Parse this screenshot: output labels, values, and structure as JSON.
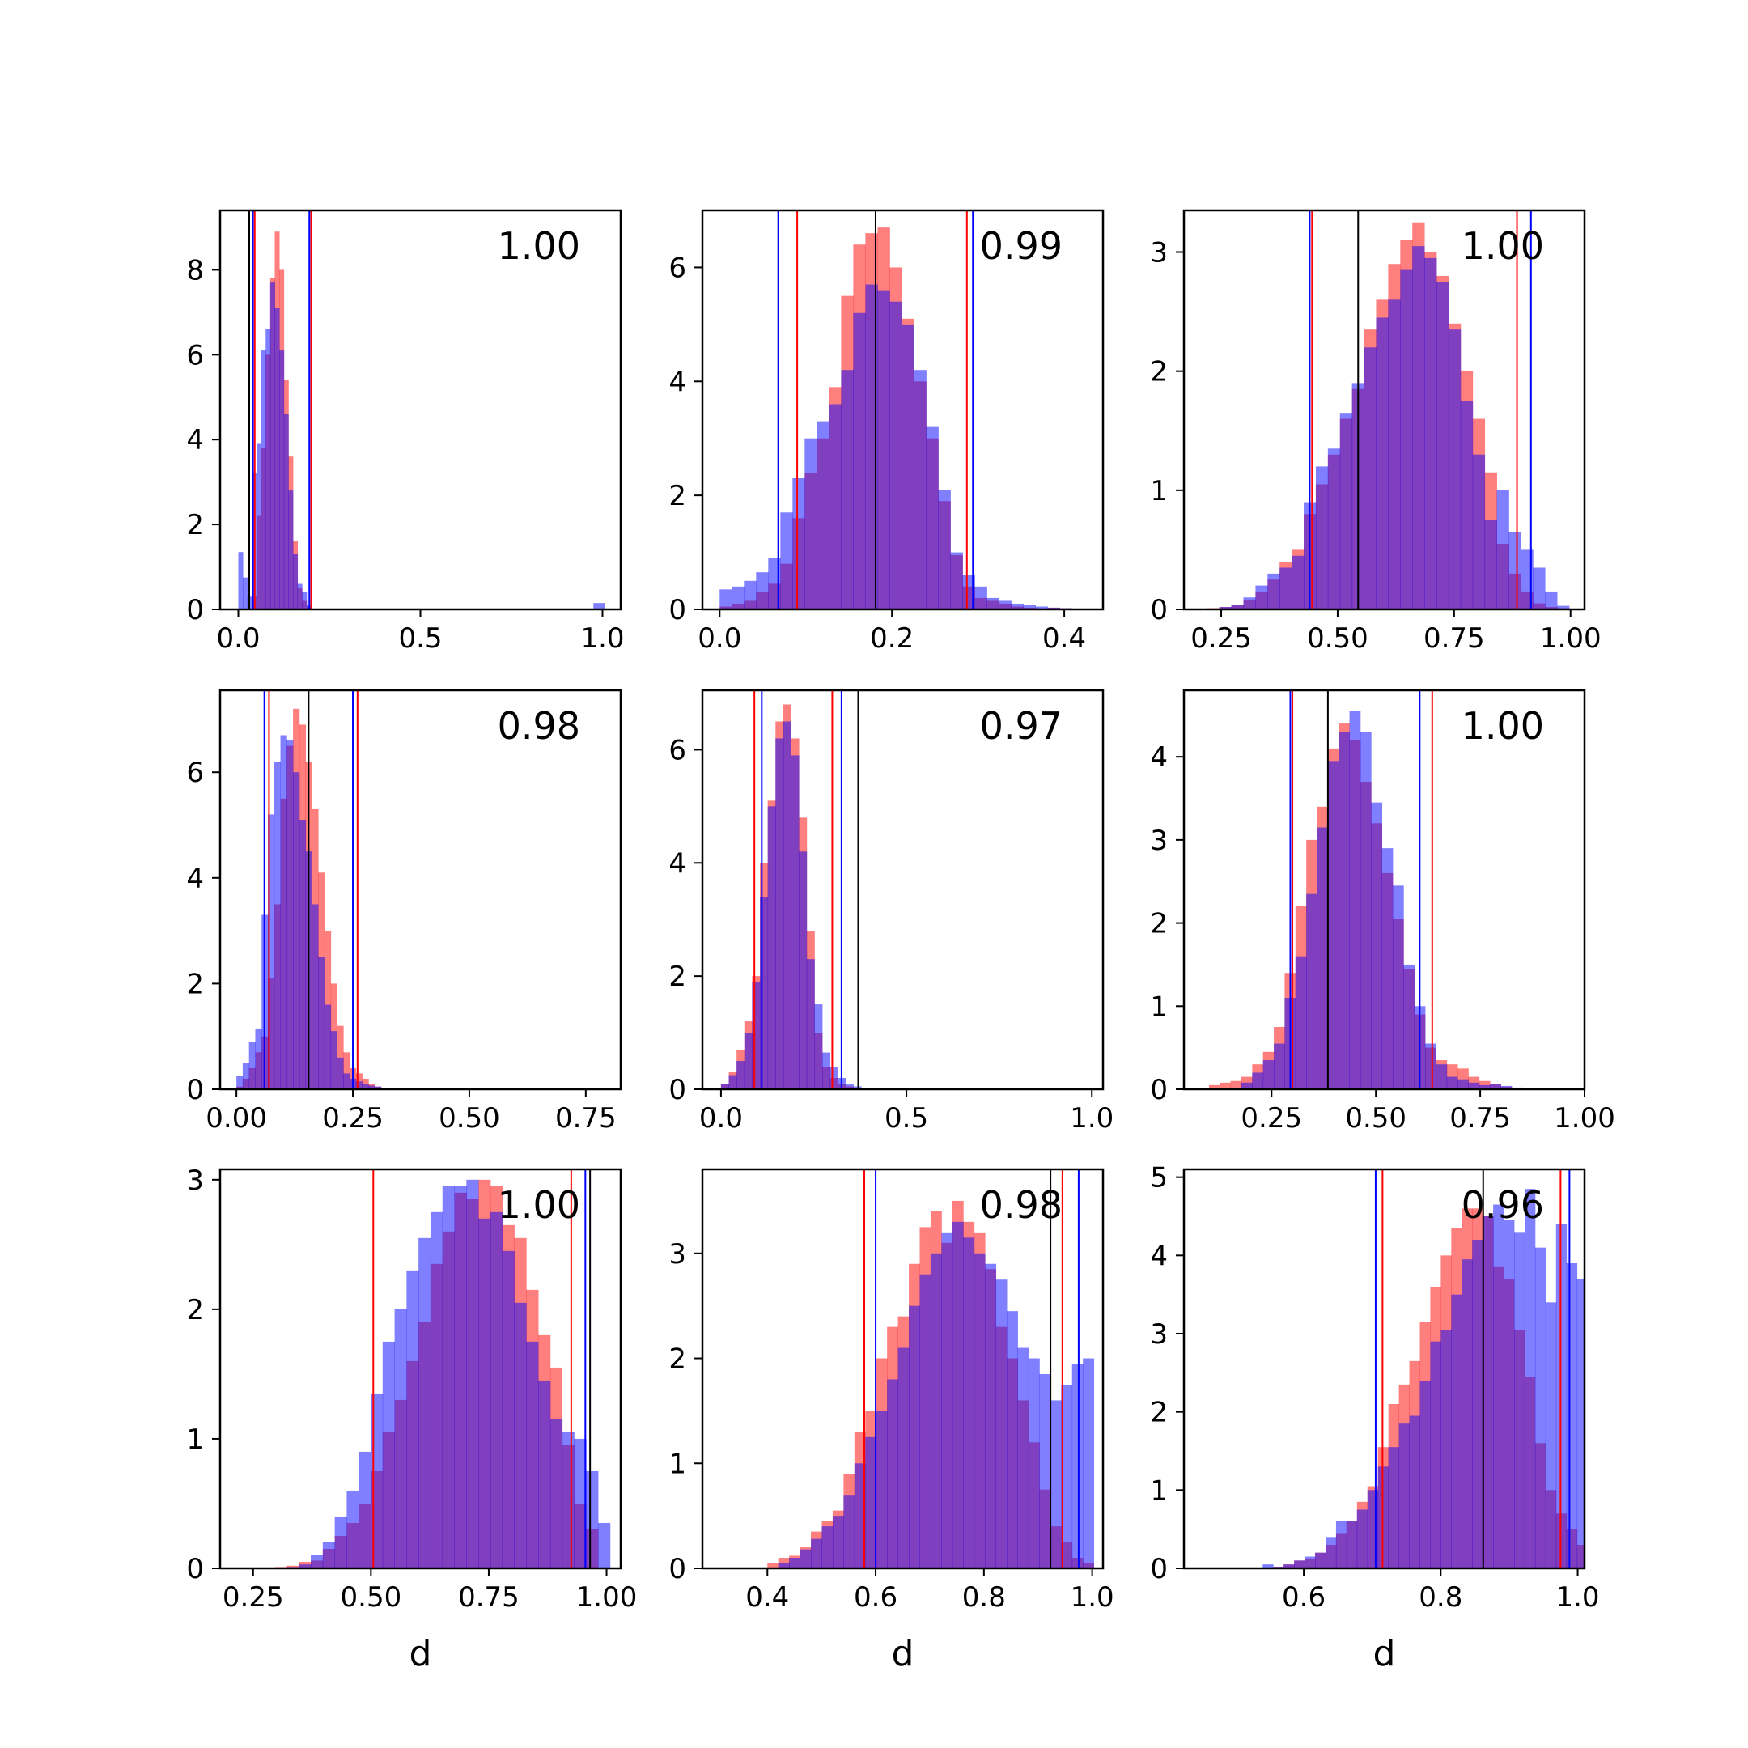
{
  "chart_data": [
    {
      "type": "histogram",
      "annotation": "1.00",
      "xlabel": "",
      "xlim": [
        -0.05,
        1.05
      ],
      "ylim": [
        0,
        9.4
      ],
      "xticks": [
        0.0,
        0.5,
        1.0
      ],
      "xtick_labels": [
        "0.0",
        "0.5",
        "1.0"
      ],
      "yticks": [
        0,
        2,
        4,
        6,
        8
      ],
      "ytick_labels": [
        "0",
        "2",
        "4",
        "6",
        "8"
      ],
      "hist_red": {
        "start": 0.0,
        "bin_width": 0.0125,
        "values": [
          0,
          0,
          0,
          0.3,
          2.2,
          3.8,
          6.0,
          7.8,
          8.9,
          8.0,
          5.4,
          3.6,
          1.6,
          0.5,
          0.2,
          0.05
        ]
      },
      "hist_blue": {
        "start": 0.0,
        "bin_width": 0.0125,
        "values": [
          1.35,
          0.75,
          0.3,
          3.2,
          3.9,
          6.1,
          6.6,
          7.7,
          7.1,
          6.1,
          4.6,
          2.8,
          1.3,
          0.6,
          0.4,
          0.1
        ]
      },
      "blue_tail": {
        "start": 0.975,
        "bin_width": 0.03,
        "values": [
          0.15
        ]
      },
      "vlines": [
        {
          "x": 0.03,
          "color": "#000000"
        },
        {
          "x": 0.04,
          "color": "#0000ff"
        },
        {
          "x": 0.045,
          "color": "#ff0000"
        },
        {
          "x": 0.195,
          "color": "#0000ff"
        },
        {
          "x": 0.2,
          "color": "#ff0000"
        }
      ]
    },
    {
      "type": "histogram",
      "annotation": "0.99",
      "xlabel": "",
      "xlim": [
        -0.02,
        0.445
      ],
      "ylim": [
        0,
        7.0
      ],
      "xticks": [
        0.0,
        0.2,
        0.4
      ],
      "xtick_labels": [
        "0.0",
        "0.2",
        "0.4"
      ],
      "yticks": [
        0,
        2,
        4,
        6
      ],
      "ytick_labels": [
        "0",
        "2",
        "4",
        "6"
      ],
      "hist_red": {
        "start": 0.0,
        "bin_width": 0.0141,
        "values": [
          0.05,
          0.1,
          0.15,
          0.3,
          0.45,
          0.8,
          1.6,
          2.4,
          3.0,
          3.9,
          5.5,
          6.4,
          6.6,
          6.7,
          6.0,
          5.1,
          4.0,
          3.0,
          1.9,
          0.95,
          0.4,
          0.2,
          0.15,
          0.1,
          0.05,
          0.03,
          0.02,
          0.03,
          0.02,
          0.01
        ]
      },
      "hist_blue": {
        "start": 0.0,
        "bin_width": 0.0141,
        "values": [
          0.35,
          0.4,
          0.5,
          0.65,
          0.9,
          1.7,
          2.3,
          3.0,
          3.3,
          3.6,
          4.2,
          5.2,
          5.7,
          5.6,
          5.4,
          5.0,
          4.2,
          3.2,
          2.1,
          1.0,
          0.6,
          0.4,
          0.2,
          0.15,
          0.1,
          0.08,
          0.05,
          0.03,
          0.02,
          0.01
        ]
      },
      "vlines": [
        {
          "x": 0.068,
          "color": "#0000ff"
        },
        {
          "x": 0.09,
          "color": "#ff0000"
        },
        {
          "x": 0.181,
          "color": "#000000"
        },
        {
          "x": 0.287,
          "color": "#ff0000"
        },
        {
          "x": 0.294,
          "color": "#0000ff"
        }
      ]
    },
    {
      "type": "histogram",
      "annotation": "1.00",
      "xlabel": "",
      "xlim": [
        0.17,
        1.03
      ],
      "ylim": [
        0,
        3.35
      ],
      "xticks": [
        0.25,
        0.5,
        0.75,
        1.0
      ],
      "xtick_labels": [
        "0.25",
        "0.50",
        "0.75",
        "1.00"
      ],
      "yticks": [
        0,
        1,
        2,
        3
      ],
      "ytick_labels": [
        "0",
        "1",
        "2",
        "3"
      ],
      "hist_red": {
        "start": 0.22,
        "bin_width": 0.0259,
        "values": [
          0.01,
          0.02,
          0.04,
          0.08,
          0.15,
          0.25,
          0.4,
          0.5,
          0.8,
          1.05,
          1.3,
          1.6,
          1.85,
          2.35,
          2.6,
          2.9,
          3.1,
          3.25,
          3.0,
          2.8,
          2.4,
          2.0,
          1.6,
          1.15,
          0.55,
          0.3,
          0.15,
          0.05,
          0.02,
          0.01
        ]
      },
      "hist_blue": {
        "start": 0.22,
        "bin_width": 0.0259,
        "values": [
          0.0,
          0.02,
          0.04,
          0.1,
          0.2,
          0.3,
          0.35,
          0.45,
          0.9,
          1.2,
          1.35,
          1.65,
          1.9,
          2.2,
          2.45,
          2.6,
          2.85,
          3.05,
          2.95,
          2.75,
          2.35,
          1.75,
          1.3,
          0.75,
          1.0,
          0.65,
          0.5,
          0.35,
          0.15,
          0.03
        ]
      },
      "vlines": [
        {
          "x": 0.44,
          "color": "#0000ff"
        },
        {
          "x": 0.445,
          "color": "#ff0000"
        },
        {
          "x": 0.544,
          "color": "#000000"
        },
        {
          "x": 0.885,
          "color": "#ff0000"
        },
        {
          "x": 0.915,
          "color": "#0000ff"
        }
      ]
    },
    {
      "type": "histogram",
      "annotation": "0.98",
      "xlabel": "",
      "xlim": [
        -0.035,
        0.825
      ],
      "ylim": [
        0,
        7.55
      ],
      "xticks": [
        0.0,
        0.25,
        0.5,
        0.75
      ],
      "xtick_labels": [
        "0.00",
        "0.25",
        "0.50",
        "0.75"
      ],
      "yticks": [
        0,
        2,
        4,
        6
      ],
      "ytick_labels": [
        "0",
        "2",
        "4",
        "6"
      ],
      "hist_red": {
        "start": 0.0,
        "bin_width": 0.0135,
        "values": [
          0.05,
          0.2,
          0.4,
          0.7,
          1.0,
          2.1,
          3.5,
          5.5,
          6.5,
          7.2,
          6.9,
          6.2,
          5.3,
          4.1,
          3.0,
          2.0,
          1.2,
          0.7,
          0.4,
          0.3,
          0.2,
          0.1,
          0.05,
          0.03,
          0.02,
          0.01,
          0.01,
          0.01
        ]
      },
      "hist_blue": {
        "start": 0.0,
        "bin_width": 0.0135,
        "values": [
          0.25,
          0.5,
          0.9,
          1.15,
          3.3,
          5.2,
          6.2,
          6.7,
          6.6,
          6.0,
          5.1,
          4.5,
          3.5,
          2.5,
          1.6,
          1.1,
          0.6,
          0.3,
          0.2,
          0.15,
          0.1,
          0.07,
          0.05,
          0.03,
          0.02,
          0.01,
          0.01,
          0.0
        ]
      },
      "vlines": [
        {
          "x": 0.06,
          "color": "#0000ff"
        },
        {
          "x": 0.07,
          "color": "#ff0000"
        },
        {
          "x": 0.155,
          "color": "#000000"
        },
        {
          "x": 0.25,
          "color": "#0000ff"
        },
        {
          "x": 0.26,
          "color": "#ff0000"
        }
      ]
    },
    {
      "type": "histogram",
      "annotation": "0.97",
      "xlabel": "",
      "xlim": [
        -0.05,
        1.03
      ],
      "ylim": [
        0,
        7.05
      ],
      "xticks": [
        0.0,
        0.5,
        1.0
      ],
      "xtick_labels": [
        "0.0",
        "0.5",
        "1.0"
      ],
      "yticks": [
        0,
        2,
        4,
        6
      ],
      "ytick_labels": [
        "0",
        "2",
        "4",
        "6"
      ],
      "hist_red": {
        "start": 0.0,
        "bin_width": 0.021,
        "values": [
          0.1,
          0.3,
          0.7,
          1.2,
          2.0,
          4.0,
          5.1,
          6.5,
          6.8,
          6.2,
          4.8,
          2.8,
          1.0,
          0.4,
          0.2,
          0.1,
          0.05,
          0.02,
          0.01,
          0.01
        ]
      },
      "hist_blue": {
        "start": 0.0,
        "bin_width": 0.021,
        "values": [
          0.1,
          0.25,
          0.5,
          1.0,
          1.9,
          3.4,
          5.0,
          6.2,
          6.5,
          5.9,
          4.2,
          2.3,
          1.5,
          0.65,
          0.4,
          0.2,
          0.1,
          0.05,
          0.02,
          0.01
        ]
      },
      "vlines": [
        {
          "x": 0.09,
          "color": "#ff0000"
        },
        {
          "x": 0.11,
          "color": "#0000ff"
        },
        {
          "x": 0.3,
          "color": "#ff0000"
        },
        {
          "x": 0.325,
          "color": "#0000ff"
        },
        {
          "x": 0.37,
          "color": "#000000"
        }
      ]
    },
    {
      "type": "histogram",
      "annotation": "1.00",
      "xlabel": "",
      "xlim": [
        0.04,
        1.0
      ],
      "ylim": [
        0,
        4.8
      ],
      "xticks": [
        0.25,
        0.5,
        0.75,
        1.0
      ],
      "xtick_labels": [
        "0.25",
        "0.50",
        "0.75",
        "1.00"
      ],
      "yticks": [
        0,
        1,
        2,
        3,
        4
      ],
      "ytick_labels": [
        "0",
        "1",
        "2",
        "3",
        "4"
      ],
      "hist_red": {
        "start": 0.1,
        "bin_width": 0.0259,
        "values": [
          0.05,
          0.08,
          0.1,
          0.15,
          0.3,
          0.45,
          0.75,
          1.4,
          2.2,
          3.0,
          3.4,
          4.1,
          4.4,
          4.2,
          3.7,
          3.2,
          2.6,
          2.05,
          1.45,
          0.9,
          0.5,
          0.35,
          0.3,
          0.25,
          0.15,
          0.1,
          0.06,
          0.03,
          0.02,
          0.01,
          0.01,
          0.0
        ]
      },
      "hist_blue": {
        "start": 0.1,
        "bin_width": 0.0259,
        "values": [
          0.0,
          0.0,
          0.02,
          0.08,
          0.2,
          0.35,
          0.55,
          1.1,
          1.6,
          2.35,
          3.15,
          3.95,
          4.3,
          4.55,
          4.3,
          3.45,
          2.9,
          2.45,
          1.5,
          1.0,
          0.55,
          0.3,
          0.15,
          0.12,
          0.08,
          0.05,
          0.06,
          0.04,
          0.02,
          0.01,
          0.0,
          0.0
        ]
      },
      "vlines": [
        {
          "x": 0.295,
          "color": "#0000ff"
        },
        {
          "x": 0.3,
          "color": "#ff0000"
        },
        {
          "x": 0.385,
          "color": "#000000"
        },
        {
          "x": 0.605,
          "color": "#0000ff"
        },
        {
          "x": 0.635,
          "color": "#ff0000"
        }
      ]
    },
    {
      "type": "histogram",
      "annotation": "1.00",
      "xlabel": "d",
      "xlim": [
        0.18,
        1.03
      ],
      "ylim": [
        0,
        3.08
      ],
      "xticks": [
        0.25,
        0.5,
        0.75,
        1.0
      ],
      "xtick_labels": [
        "0.25",
        "0.50",
        "0.75",
        "1.00"
      ],
      "yticks": [
        0,
        1,
        2,
        3
      ],
      "ytick_labels": [
        "0",
        "1",
        "2",
        "3"
      ],
      "hist_red": {
        "start": 0.22,
        "bin_width": 0.0254,
        "values": [
          0.0,
          0.0,
          0.0,
          0.01,
          0.02,
          0.05,
          0.06,
          0.15,
          0.25,
          0.35,
          0.5,
          0.75,
          1.05,
          1.3,
          1.6,
          1.9,
          2.35,
          2.6,
          2.9,
          2.85,
          3.0,
          2.95,
          2.65,
          2.55,
          2.15,
          1.8,
          1.55,
          0.95,
          0.5,
          0.3,
          0.0
        ]
      },
      "hist_blue": {
        "start": 0.22,
        "bin_width": 0.0254,
        "values": [
          0.0,
          0.0,
          0.0,
          0.0,
          0.01,
          0.03,
          0.1,
          0.2,
          0.4,
          0.6,
          0.9,
          1.35,
          1.75,
          2.0,
          2.3,
          2.55,
          2.75,
          2.95,
          2.95,
          3.0,
          2.7,
          2.75,
          2.45,
          2.05,
          1.75,
          1.45,
          1.15,
          1.05,
          1.0,
          0.75,
          0.35
        ]
      },
      "vlines": [
        {
          "x": 0.505,
          "color": "#ff0000"
        },
        {
          "x": 0.925,
          "color": "#ff0000"
        },
        {
          "x": 0.955,
          "color": "#0000ff"
        },
        {
          "x": 0.965,
          "color": "#000000"
        }
      ]
    },
    {
      "type": "histogram",
      "annotation": "0.98",
      "xlabel": "d",
      "xlim": [
        0.28,
        1.02
      ],
      "ylim": [
        0,
        3.8
      ],
      "xticks": [
        0.4,
        0.6,
        0.8,
        1.0
      ],
      "xtick_labels": [
        "0.4",
        "0.6",
        "0.8",
        "1.0"
      ],
      "yticks": [
        0,
        1,
        2,
        3
      ],
      "ytick_labels": [
        "0",
        "1",
        "2",
        "3"
      ],
      "hist_red": {
        "start": 0.4,
        "bin_width": 0.0201,
        "values": [
          0.05,
          0.1,
          0.12,
          0.2,
          0.35,
          0.45,
          0.55,
          0.9,
          1.3,
          1.5,
          2.0,
          2.3,
          2.4,
          2.9,
          3.25,
          3.4,
          3.1,
          3.5,
          3.3,
          3.2,
          2.85,
          2.3,
          2.0,
          1.6,
          1.2,
          0.75,
          0.4,
          0.25,
          0.1,
          0.05
        ]
      },
      "hist_blue": {
        "start": 0.4,
        "bin_width": 0.0201,
        "values": [
          0.0,
          0.05,
          0.1,
          0.18,
          0.28,
          0.4,
          0.5,
          0.7,
          1.0,
          1.25,
          1.5,
          1.8,
          2.1,
          2.5,
          2.8,
          3.0,
          3.2,
          3.3,
          3.15,
          3.0,
          2.9,
          2.75,
          2.45,
          2.1,
          2.0,
          1.85,
          1.6,
          1.75,
          1.95,
          2.0
        ]
      },
      "vlines": [
        {
          "x": 0.579,
          "color": "#ff0000"
        },
        {
          "x": 0.6,
          "color": "#0000ff"
        },
        {
          "x": 0.923,
          "color": "#000000"
        },
        {
          "x": 0.945,
          "color": "#ff0000"
        },
        {
          "x": 0.975,
          "color": "#0000ff"
        }
      ]
    },
    {
      "type": "histogram",
      "annotation": "0.96",
      "xlabel": "d",
      "xlim": [
        0.425,
        1.01
      ],
      "ylim": [
        0,
        5.1
      ],
      "xticks": [
        0.6,
        0.8,
        1.0
      ],
      "xtick_labels": [
        "0.6",
        "0.8",
        "1.0"
      ],
      "yticks": [
        0,
        1,
        2,
        3,
        4,
        5
      ],
      "ytick_labels": [
        "0",
        "1",
        "2",
        "3",
        "4",
        "5"
      ],
      "hist_red": {
        "start": 0.54,
        "bin_width": 0.0153,
        "values": [
          0.0,
          0.02,
          0.05,
          0.1,
          0.12,
          0.2,
          0.3,
          0.45,
          0.6,
          0.85,
          1.05,
          1.55,
          2.1,
          2.35,
          2.65,
          3.15,
          3.6,
          4.0,
          4.35,
          4.6,
          4.6,
          4.5,
          3.85,
          3.7,
          3.05,
          2.45,
          1.6,
          1.0,
          0.7,
          0.5,
          0.3
        ]
      },
      "hist_blue": {
        "start": 0.54,
        "bin_width": 0.0153,
        "values": [
          0.05,
          0.02,
          0.05,
          0.1,
          0.15,
          0.2,
          0.4,
          0.6,
          0.6,
          0.75,
          1.0,
          1.3,
          1.55,
          1.85,
          1.95,
          2.4,
          2.9,
          3.05,
          3.5,
          3.95,
          4.2,
          4.5,
          4.65,
          4.45,
          4.3,
          4.85,
          4.1,
          3.4,
          4.4,
          3.9,
          3.7
        ]
      },
      "vlines": [
        {
          "x": 0.705,
          "color": "#0000ff"
        },
        {
          "x": 0.715,
          "color": "#ff0000"
        },
        {
          "x": 0.862,
          "color": "#000000"
        },
        {
          "x": 0.975,
          "color": "#ff0000"
        },
        {
          "x": 0.988,
          "color": "#0000ff"
        }
      ]
    }
  ]
}
